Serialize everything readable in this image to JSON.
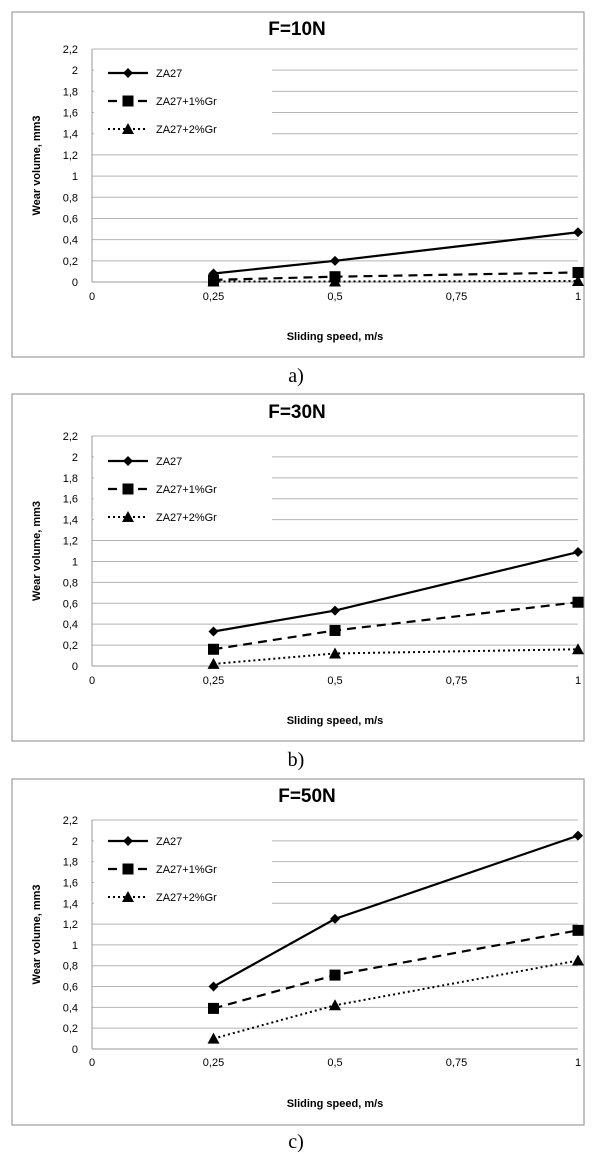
{
  "chart_data": [
    {
      "type": "line",
      "title": "F=10N",
      "xlabel": "Sliding speed, m/s",
      "ylabel": "Wear volume, mm3",
      "x_ticks": [
        "0",
        "0,25",
        "0,5",
        "0,75",
        "1"
      ],
      "y_ticks": [
        "0",
        "0,2",
        "0,4",
        "0,6",
        "0,8",
        "1",
        "1,2",
        "1,4",
        "1,6",
        "1,8",
        "2",
        "2,2"
      ],
      "xlim": [
        0,
        1
      ],
      "ylim": [
        0,
        2.2
      ],
      "x": [
        0.25,
        0.5,
        1
      ],
      "series": [
        {
          "name": "ZA27",
          "values": [
            0.08,
            0.2,
            0.47
          ],
          "marker": "diamond",
          "dash": "solid"
        },
        {
          "name": "ZA27+1%Gr",
          "values": [
            0.02,
            0.05,
            0.09
          ],
          "marker": "square",
          "dash": "dashed"
        },
        {
          "name": "ZA27+2%Gr",
          "values": [
            0.005,
            0.005,
            0.01
          ],
          "marker": "triangle",
          "dash": "dotted"
        }
      ],
      "legend": "top-left",
      "grid": true,
      "caption": "a)"
    },
    {
      "type": "line",
      "title": "F=30N",
      "xlabel": "Sliding speed, m/s",
      "ylabel": "Wear volume, mm3",
      "x_ticks": [
        "0",
        "0,25",
        "0,5",
        "0,75",
        "1"
      ],
      "y_ticks": [
        "0",
        "0,2",
        "0,4",
        "0,6",
        "0,8",
        "1",
        "1,2",
        "1,4",
        "1,6",
        "1,8",
        "2",
        "2,2"
      ],
      "xlim": [
        0,
        1
      ],
      "ylim": [
        0,
        2.2
      ],
      "x": [
        0.25,
        0.5,
        1
      ],
      "series": [
        {
          "name": "ZA27",
          "values": [
            0.33,
            0.53,
            1.09
          ],
          "marker": "diamond",
          "dash": "solid"
        },
        {
          "name": "ZA27+1%Gr",
          "values": [
            0.16,
            0.34,
            0.61
          ],
          "marker": "square",
          "dash": "dashed"
        },
        {
          "name": "ZA27+2%Gr",
          "values": [
            0.02,
            0.12,
            0.16
          ],
          "marker": "triangle",
          "dash": "dotted"
        }
      ],
      "legend": "top-left",
      "grid": true,
      "caption": "b)"
    },
    {
      "type": "line",
      "title": "F=50N",
      "xlabel": "Sliding speed, m/s",
      "ylabel": "Wear volume, mm3",
      "x_ticks": [
        "0",
        "0,25",
        "0,5",
        "0,75",
        "1"
      ],
      "y_ticks": [
        "0",
        "0,2",
        "0,4",
        "0,6",
        "0,8",
        "1",
        "1,2",
        "1,4",
        "1,6",
        "1,8",
        "2",
        "2,2"
      ],
      "xlim": [
        0,
        1
      ],
      "ylim": [
        0,
        2.2
      ],
      "x": [
        0.25,
        0.5,
        1
      ],
      "series": [
        {
          "name": "ZA27",
          "values": [
            0.6,
            1.25,
            2.05
          ],
          "marker": "diamond",
          "dash": "solid"
        },
        {
          "name": "ZA27+1%Gr",
          "values": [
            0.39,
            0.71,
            1.14
          ],
          "marker": "square",
          "dash": "dashed"
        },
        {
          "name": "ZA27+2%Gr",
          "values": [
            0.1,
            0.42,
            0.85
          ],
          "marker": "triangle",
          "dash": "dotted"
        }
      ],
      "legend": "top-left",
      "grid": true,
      "caption": "c)"
    }
  ]
}
